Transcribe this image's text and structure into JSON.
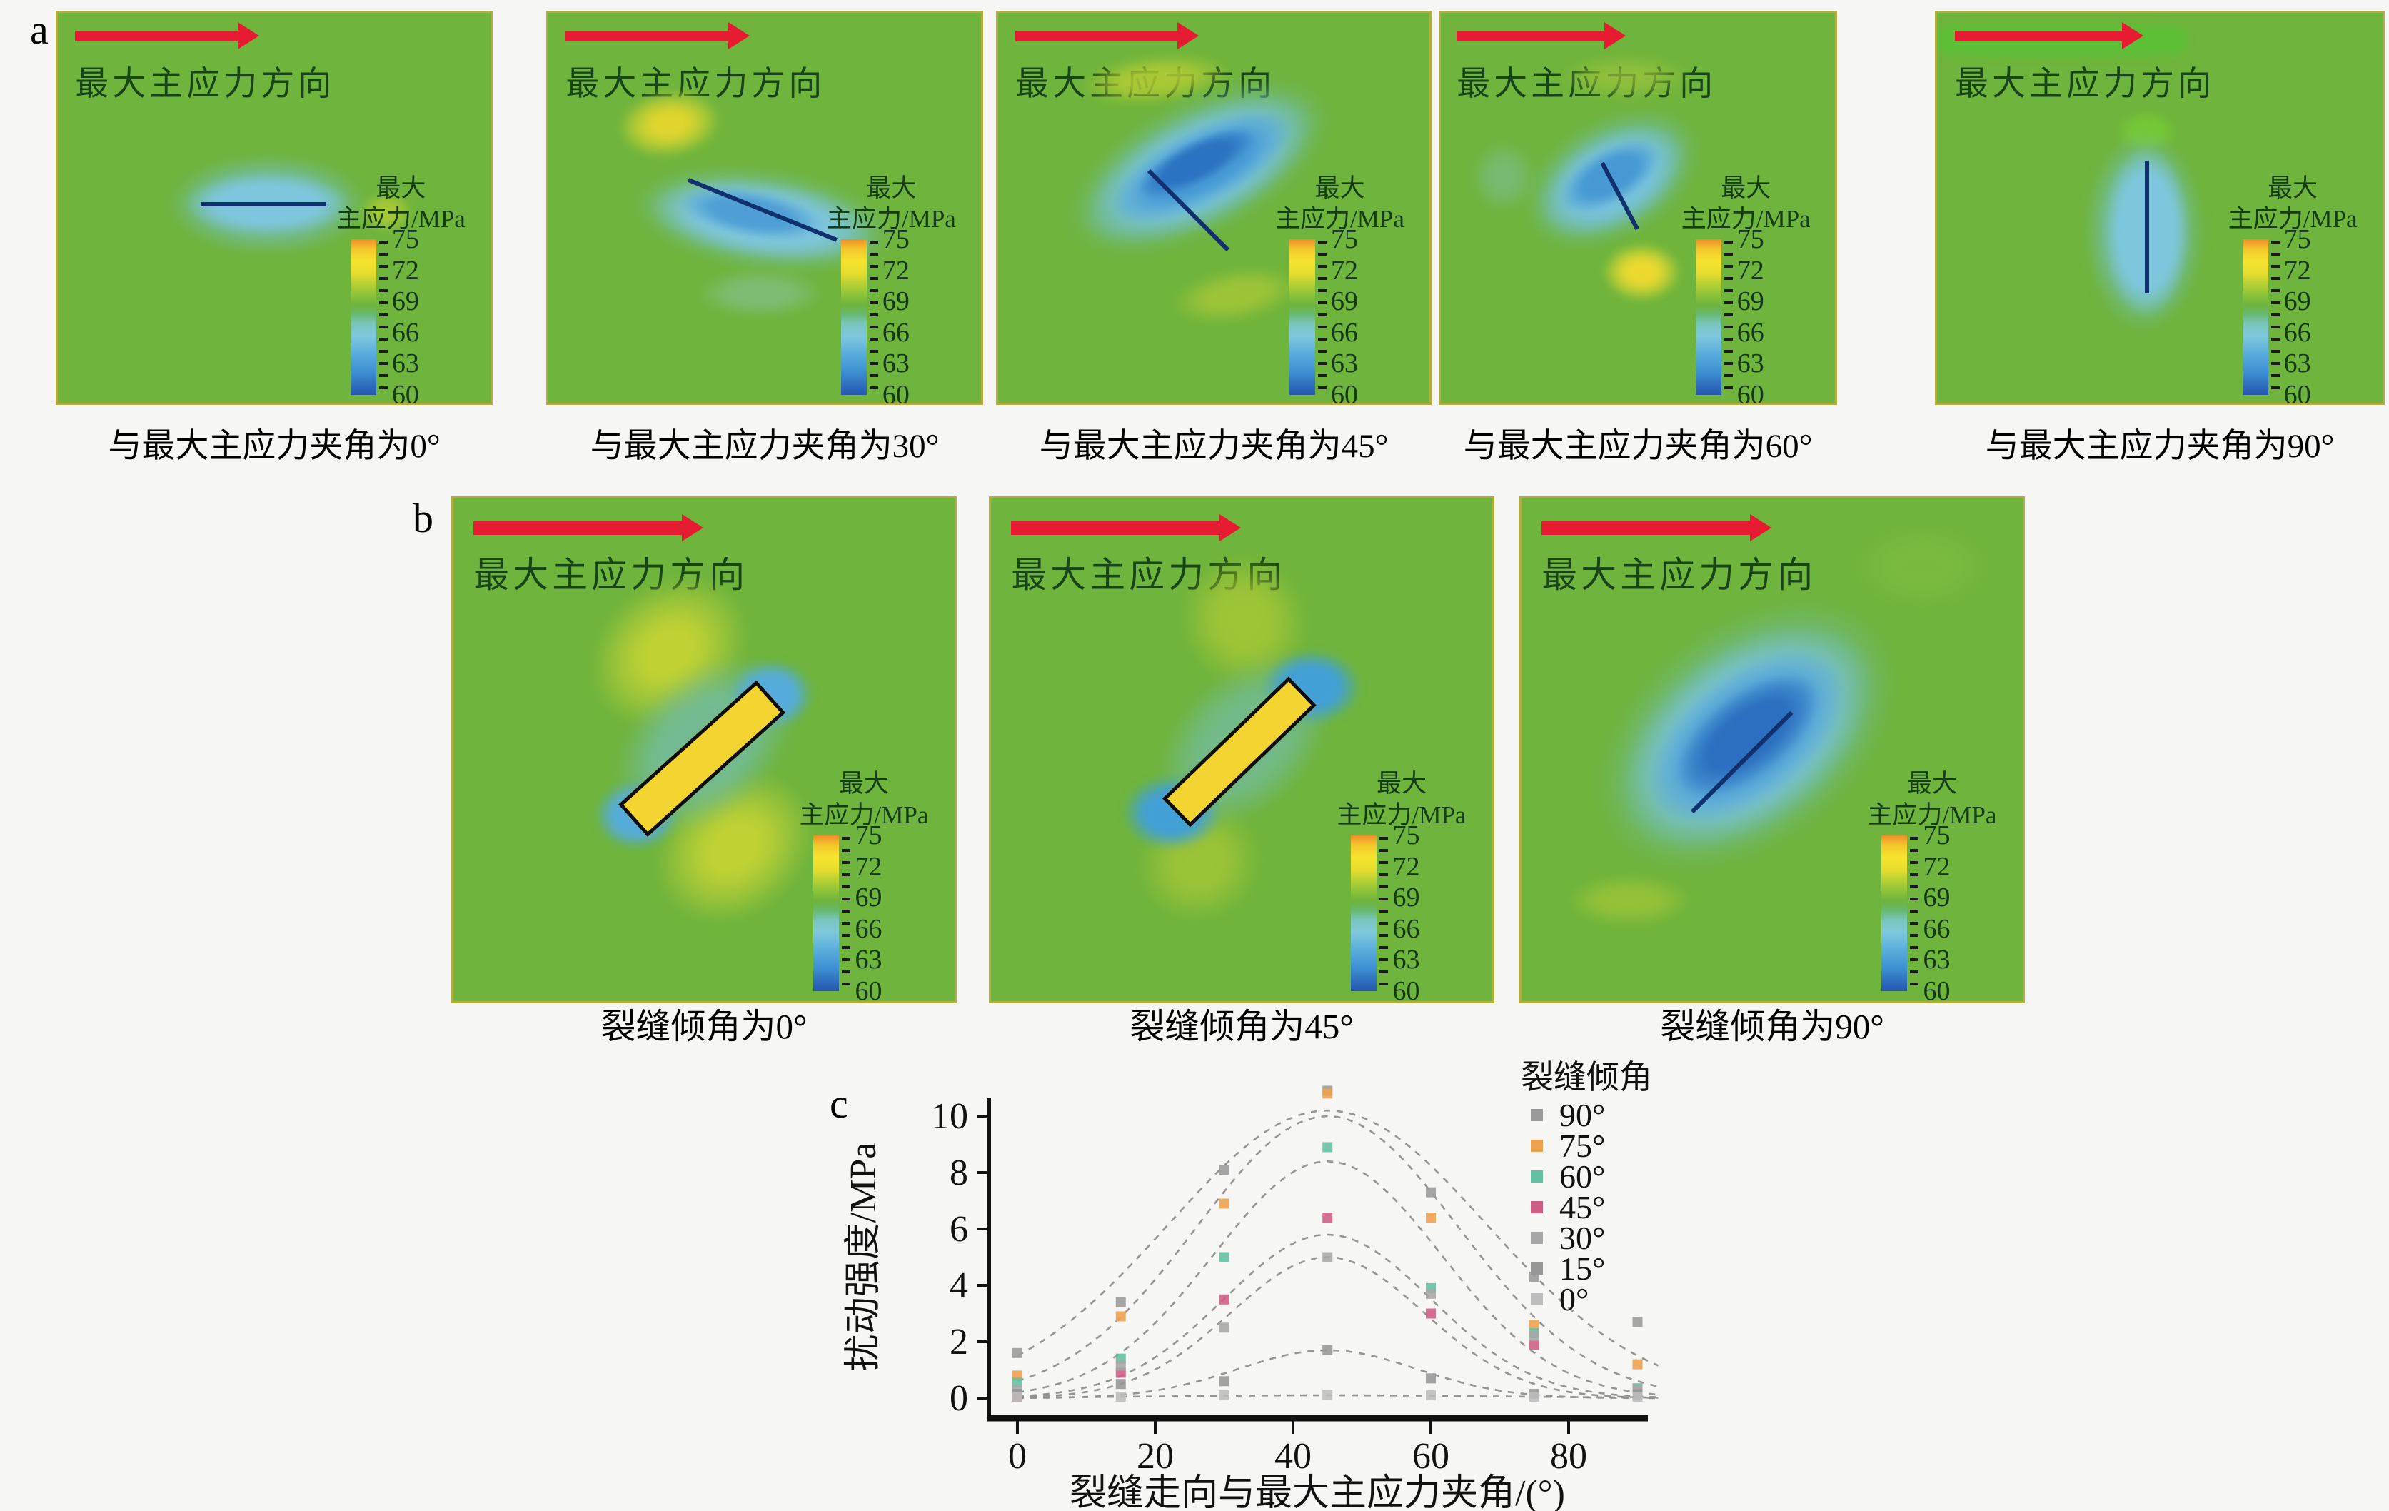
{
  "figure": {
    "label_a": "a",
    "label_b": "b",
    "label_c": "c"
  },
  "maps": {
    "direction_label": "最大主应力方向",
    "arrow_color": "#e61a30",
    "background_color": "#6fb43c",
    "legend": {
      "title_line1": "最大",
      "title_line2": "主应力/MPa",
      "ticks": [
        "75",
        "72",
        "69",
        "66",
        "63",
        "60"
      ]
    },
    "row_a_captions": [
      "与最大主应力夹角为0°",
      "与最大主应力夹角为30°",
      "与最大主应力夹角为45°",
      "与最大主应力夹角为60°",
      "与最大主应力夹角为90°"
    ],
    "row_b_captions": [
      "裂缝倾角为0°",
      "裂缝倾角为45°",
      "裂缝倾角为90°"
    ]
  },
  "chart_data": {
    "type": "scatter",
    "title": "",
    "xlabel": "裂缝走向与最大主应力夹角/(°)",
    "ylabel": "扰动强度/MPa",
    "xlim": [
      0,
      93
    ],
    "ylim": [
      0,
      11
    ],
    "xticks": [
      0,
      20,
      40,
      60,
      80
    ],
    "yticks": [
      0,
      2,
      4,
      6,
      8,
      10
    ],
    "grid": false,
    "legend_title": "裂缝倾角",
    "legend_position": "upper right",
    "curve_style": "dashed gaussian fits peaking at 45°",
    "x": [
      0,
      15,
      30,
      45,
      60,
      75,
      90
    ],
    "series": [
      {
        "name": "90°",
        "color": "#9a9a9a",
        "values": [
          1.6,
          3.4,
          8.1,
          10.9,
          7.3,
          4.3,
          2.7
        ],
        "fit": {
          "peak": 10.2,
          "center": 45,
          "sigma": 23
        }
      },
      {
        "name": "75°",
        "color": "#efa14e",
        "values": [
          0.8,
          2.9,
          6.9,
          10.8,
          6.4,
          2.6,
          1.2
        ],
        "fit": {
          "peak": 10.0,
          "center": 45,
          "sigma": 19
        }
      },
      {
        "name": "60°",
        "color": "#62bfa2",
        "values": [
          0.55,
          1.4,
          5.0,
          8.9,
          3.9,
          2.3,
          0.35
        ],
        "fit": {
          "peak": 8.4,
          "center": 45,
          "sigma": 16.5
        }
      },
      {
        "name": "45°",
        "color": "#cf5c85",
        "values": [
          0.05,
          0.9,
          3.5,
          6.4,
          3.0,
          1.9,
          0.15
        ],
        "fit": {
          "peak": 5.8,
          "center": 45,
          "sigma": 15
        }
      },
      {
        "name": "30°",
        "color": "#a7a7a7",
        "values": [
          0.3,
          1.15,
          2.5,
          5.0,
          3.7,
          2.2,
          0.3
        ],
        "fit": {
          "peak": 5.0,
          "center": 45,
          "sigma": 14
        }
      },
      {
        "name": "15°",
        "color": "#969696",
        "values": [
          0.15,
          0.5,
          0.6,
          1.7,
          0.7,
          0.15,
          0.1
        ],
        "fit": {
          "peak": 1.7,
          "center": 45,
          "sigma": 13
        }
      },
      {
        "name": "0°",
        "color": "#bdbdbd",
        "values": [
          0.05,
          0.05,
          0.1,
          0.12,
          0.1,
          0.05,
          0.05
        ],
        "fit": {
          "peak": 0.1,
          "center": 45,
          "sigma": 25
        }
      }
    ]
  }
}
